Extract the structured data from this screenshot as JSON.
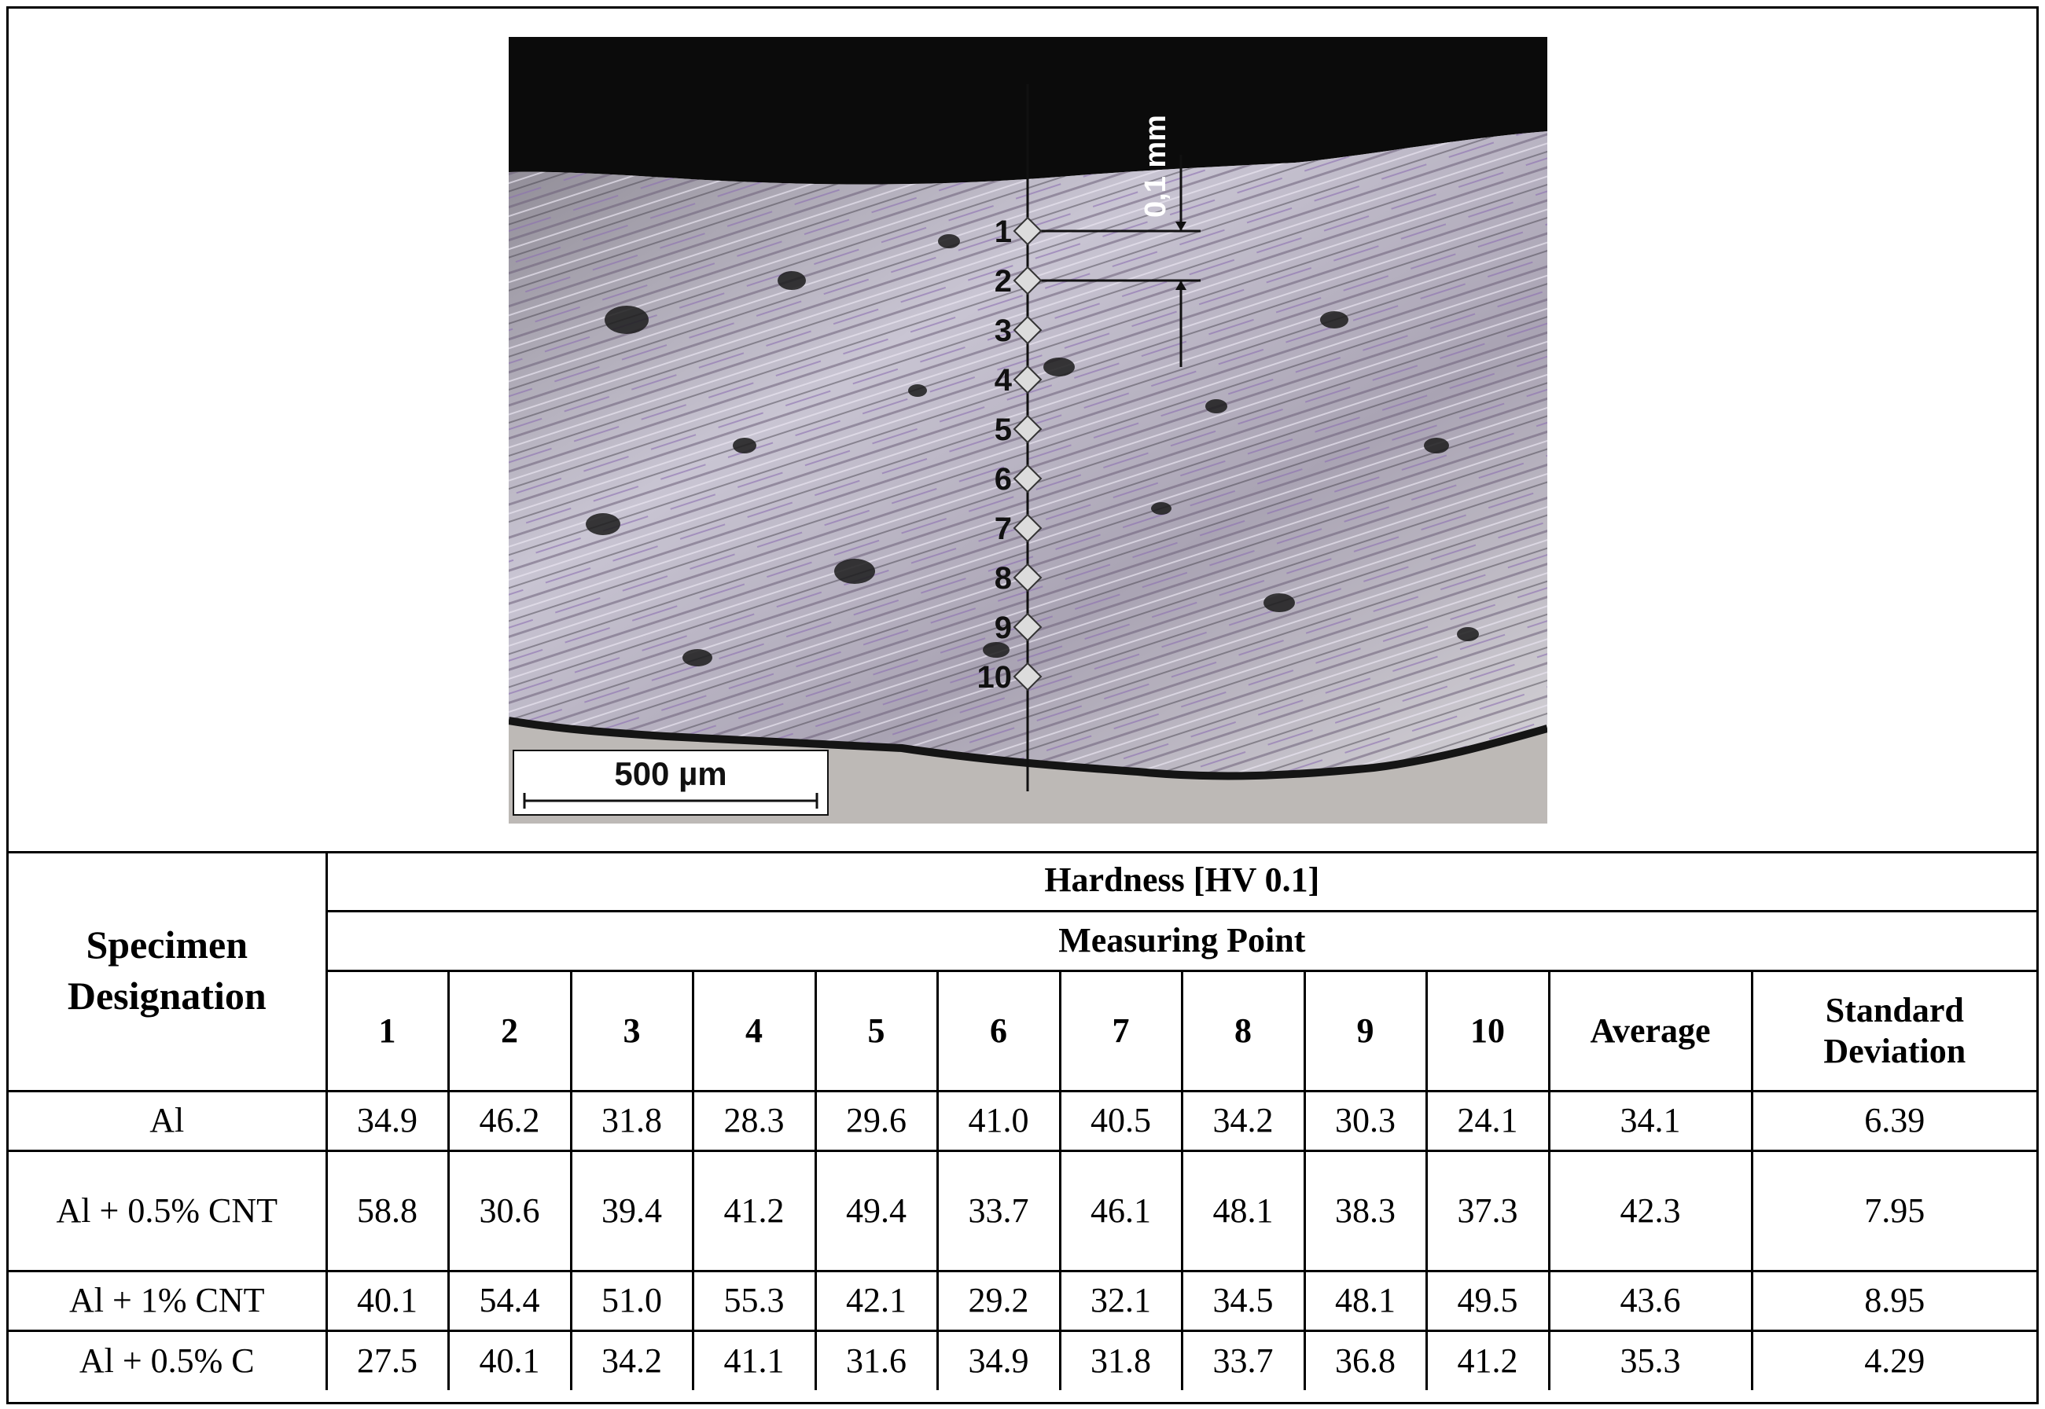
{
  "figure": {
    "scale_bar_label": "500 µm",
    "spacing_label": "0,1 mm",
    "indent_labels": [
      "1",
      "2",
      "3",
      "4",
      "5",
      "6",
      "7",
      "8",
      "9",
      "10"
    ]
  },
  "table": {
    "row_header": "Specimen Designation",
    "group_header": "Hardness [HV 0.1]",
    "subgroup_header": "Measuring Point",
    "columns": [
      "1",
      "2",
      "3",
      "4",
      "5",
      "6",
      "7",
      "8",
      "9",
      "10",
      "Average",
      "Standard Deviation"
    ],
    "rows": [
      {
        "specimen": "Al",
        "values": [
          "34.9",
          "46.2",
          "31.8",
          "28.3",
          "29.6",
          "41.0",
          "40.5",
          "34.2",
          "30.3",
          "24.1",
          "34.1",
          "6.39"
        ]
      },
      {
        "specimen": "Al + 0.5% CNT",
        "values": [
          "58.8",
          "30.6",
          "39.4",
          "41.2",
          "49.4",
          "33.7",
          "46.1",
          "48.1",
          "38.3",
          "37.3",
          "42.3",
          "7.95"
        ]
      },
      {
        "specimen": "Al + 1% CNT",
        "values": [
          "40.1",
          "54.4",
          "51.0",
          "55.3",
          "42.1",
          "29.2",
          "32.1",
          "34.5",
          "48.1",
          "49.5",
          "43.6",
          "8.95"
        ]
      },
      {
        "specimen": "Al + 0.5% C",
        "values": [
          "27.5",
          "40.1",
          "34.2",
          "41.1",
          "31.6",
          "34.9",
          "31.8",
          "33.7",
          "36.8",
          "41.2",
          "35.3",
          "4.29"
        ]
      }
    ]
  }
}
